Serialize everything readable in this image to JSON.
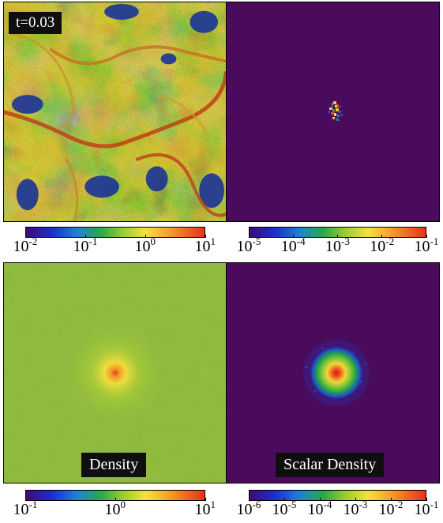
{
  "time_label": "t=0.03",
  "panel_labels": {
    "density": "Density",
    "scalar_density": "Scalar Density"
  },
  "colorbars": {
    "top_left": {
      "ticks": [
        {
          "base": "10",
          "exp": "-2"
        },
        {
          "base": "10",
          "exp": "-1"
        },
        {
          "base": "10",
          "exp": "0"
        },
        {
          "base": "10",
          "exp": "1"
        }
      ]
    },
    "top_right": {
      "ticks": [
        {
          "base": "10",
          "exp": "-5"
        },
        {
          "base": "10",
          "exp": "-4"
        },
        {
          "base": "10",
          "exp": "-3"
        },
        {
          "base": "10",
          "exp": "-2"
        },
        {
          "base": "10",
          "exp": "-1"
        }
      ]
    },
    "bottom_left": {
      "ticks": [
        {
          "base": "10",
          "exp": "-1"
        },
        {
          "base": "10",
          "exp": "0"
        },
        {
          "base": "10",
          "exp": "1"
        }
      ]
    },
    "bottom_right": {
      "ticks": [
        {
          "base": "10",
          "exp": "-6"
        },
        {
          "base": "10",
          "exp": "-5"
        },
        {
          "base": "10",
          "exp": "-4"
        },
        {
          "base": "10",
          "exp": "-3"
        },
        {
          "base": "10",
          "exp": "-2"
        },
        {
          "base": "10",
          "exp": "-1"
        }
      ]
    }
  },
  "colors": {
    "background_dark": "#4a0b5c",
    "field_green": "#8cb83a"
  }
}
